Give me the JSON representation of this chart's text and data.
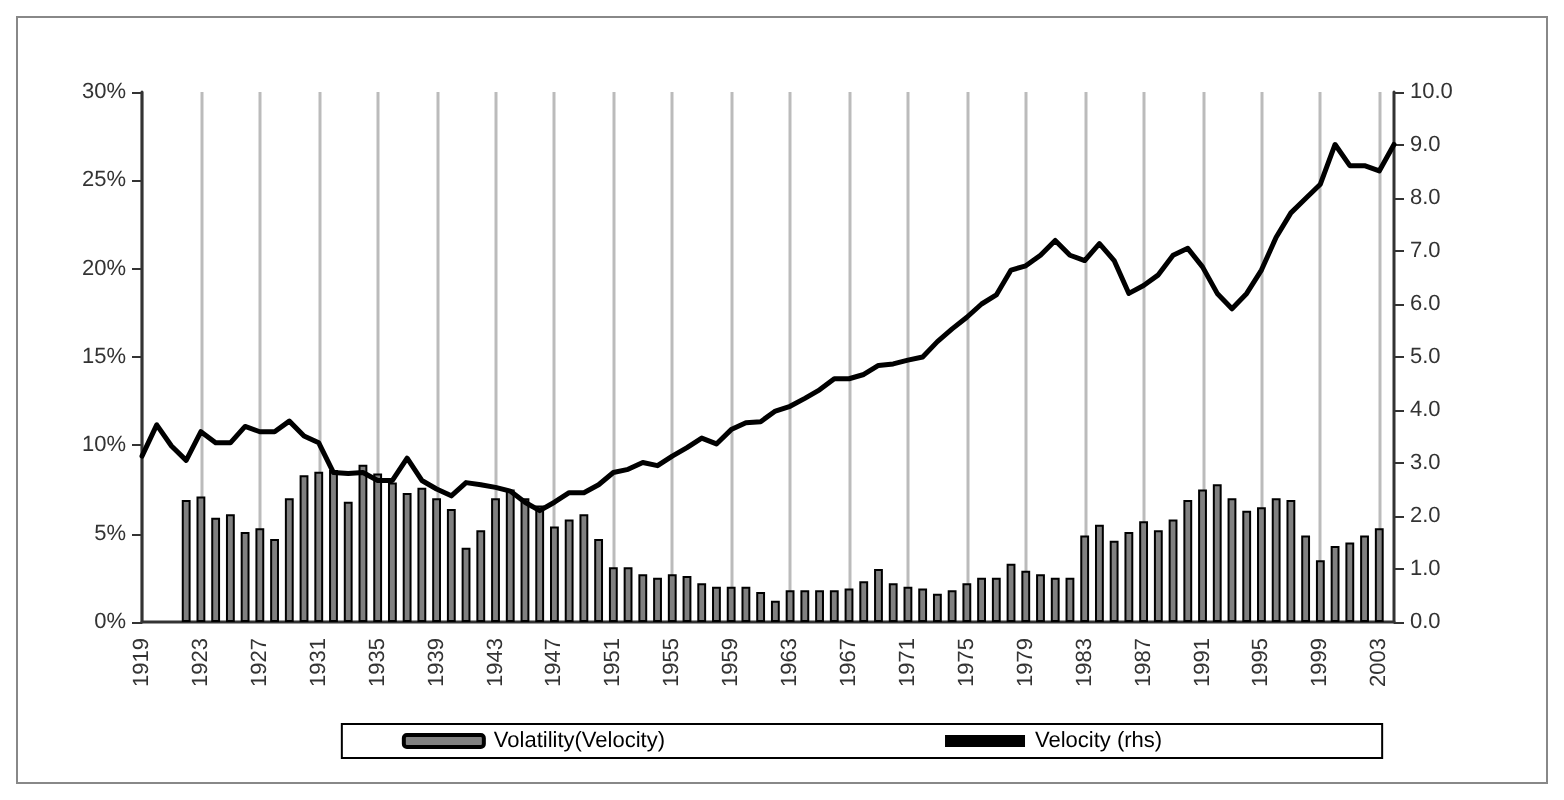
{
  "chart_data": {
    "type": "bar",
    "categories": [
      "1919",
      null,
      null,
      null,
      "1923",
      null,
      null,
      null,
      "1927",
      null,
      null,
      null,
      "1931",
      null,
      null,
      null,
      "1935",
      null,
      null,
      null,
      "1939",
      null,
      null,
      null,
      "1943",
      null,
      null,
      null,
      "1947",
      null,
      null,
      null,
      "1951",
      null,
      null,
      null,
      "1955",
      null,
      null,
      null,
      "1959",
      null,
      null,
      null,
      "1963",
      null,
      null,
      null,
      "1967",
      null,
      null,
      null,
      "1971",
      null,
      null,
      null,
      "1975",
      null,
      null,
      null,
      "1979",
      null,
      null,
      null,
      "1983",
      null,
      null,
      null,
      "1987",
      null,
      null,
      null,
      "1991",
      null,
      null,
      null,
      "1995",
      null,
      null,
      null,
      "1999",
      null,
      null,
      null,
      "2003",
      null
    ],
    "series": [
      {
        "name": "Volatility(Velocity)",
        "color": "#808080",
        "values": [
          null,
          null,
          null,
          6.9,
          7.1,
          5.9,
          6.1,
          5.1,
          5.3,
          4.7,
          7.0,
          8.3,
          8.5,
          8.6,
          6.8,
          8.9,
          8.4,
          7.9,
          7.3,
          7.6,
          7.0,
          6.4,
          4.2,
          5.2,
          7.0,
          7.5,
          7.0,
          6.6,
          5.4,
          5.8,
          6.1,
          4.7,
          3.1,
          3.1,
          2.7,
          2.5,
          2.7,
          2.6,
          2.2,
          2.0,
          2.0,
          2.0,
          1.7,
          1.2,
          1.8,
          1.8,
          1.8,
          1.8,
          1.9,
          2.3,
          3.0,
          2.2,
          2.0,
          1.9,
          1.6,
          1.8,
          2.2,
          2.5,
          2.5,
          3.3,
          2.9,
          2.7,
          2.5,
          2.5,
          4.9,
          5.5,
          4.6,
          5.1,
          5.7,
          5.2,
          5.8,
          6.9,
          7.5,
          7.8,
          7.0,
          6.3,
          6.5,
          7.0,
          6.9,
          4.9,
          3.5,
          4.3,
          4.5,
          4.9,
          5.3,
          null
        ]
      },
      {
        "name": "Velocity (rhs)",
        "type": "line",
        "axis": "y2",
        "color": "#000000",
        "values": [
          3.13,
          3.72,
          3.32,
          3.05,
          3.59,
          3.38,
          3.38,
          3.69,
          3.59,
          3.59,
          3.79,
          3.51,
          3.38,
          2.82,
          2.8,
          2.82,
          2.67,
          2.67,
          3.09,
          2.67,
          2.51,
          2.38,
          2.63,
          2.59,
          2.54,
          2.47,
          2.26,
          2.1,
          2.26,
          2.44,
          2.44,
          2.59,
          2.82,
          2.88,
          3.01,
          2.95,
          3.13,
          3.29,
          3.47,
          3.36,
          3.63,
          3.76,
          3.78,
          3.98,
          4.07,
          4.22,
          4.38,
          4.59,
          4.59,
          4.67,
          4.84,
          4.87,
          4.94,
          5.0,
          5.29,
          5.53,
          5.75,
          6.0,
          6.17,
          6.64,
          6.72,
          6.92,
          7.2,
          6.92,
          6.82,
          7.14,
          6.82,
          6.2,
          6.35,
          6.55,
          6.92,
          7.05,
          6.7,
          6.2,
          5.91,
          6.2,
          6.64,
          7.26,
          7.72,
          7.99,
          8.26,
          9.01,
          8.61,
          8.61,
          8.51,
          9.01
        ]
      }
    ],
    "ylim": [
      0,
      30
    ],
    "yticks": [
      {
        "value": 0,
        "label": "0%"
      },
      {
        "value": 5,
        "label": "5%"
      },
      {
        "value": 10,
        "label": "10%"
      },
      {
        "value": 15,
        "label": "15%"
      },
      {
        "value": 20,
        "label": "20%"
      },
      {
        "value": 25,
        "label": "25%"
      },
      {
        "value": 30,
        "label": "30%"
      }
    ],
    "y2lim": [
      0,
      10
    ],
    "y2ticks": [
      {
        "value": 0,
        "label": "0.0"
      },
      {
        "value": 1,
        "label": "1.0"
      },
      {
        "value": 2,
        "label": "2.0"
      },
      {
        "value": 3,
        "label": "3.0"
      },
      {
        "value": 4,
        "label": "4.0"
      },
      {
        "value": 5,
        "label": "5.0"
      },
      {
        "value": 6,
        "label": "6.0"
      },
      {
        "value": 7,
        "label": "7.0"
      },
      {
        "value": 8,
        "label": "8.0"
      },
      {
        "value": 9,
        "label": "9.0"
      },
      {
        "value": 10,
        "label": "10.0"
      }
    ],
    "grid": "x",
    "legend": "bottom",
    "marker": "none",
    "line_style": "solid"
  }
}
